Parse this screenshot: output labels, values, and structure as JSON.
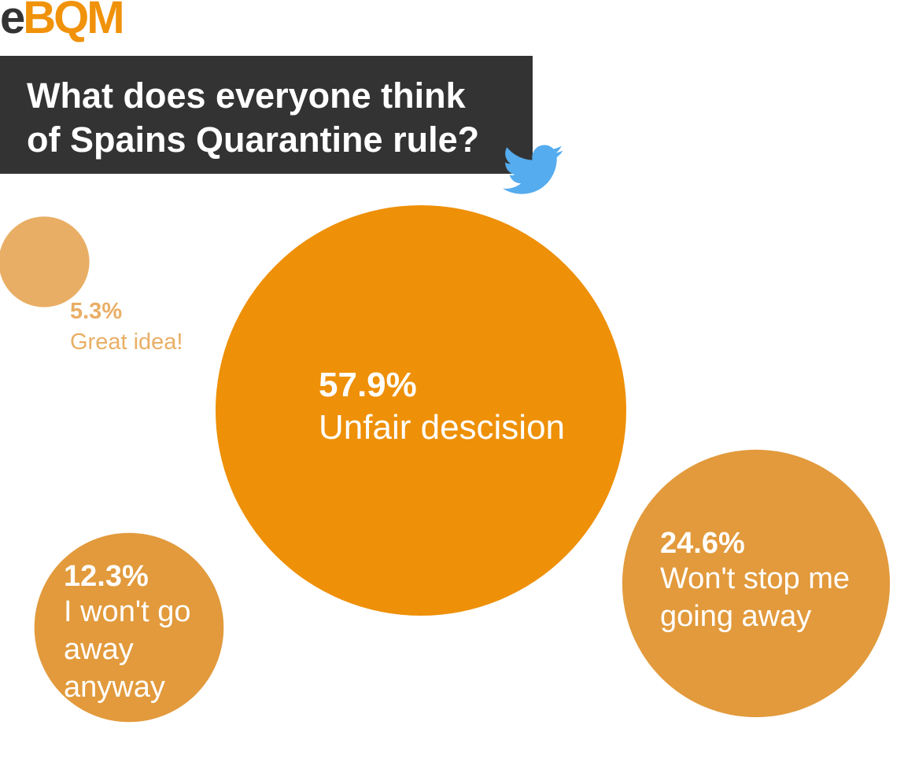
{
  "logo": {
    "part1": "e",
    "part2": "BQM"
  },
  "title": {
    "line1": "What does everyone think",
    "line2": "of Spains Quarantine rule?"
  },
  "icons": {
    "source": "twitter-bird-icon"
  },
  "colors": {
    "dark": "#333333",
    "primary": "#ee9008",
    "secondary": "#e29a3c",
    "small": "#e9ae65",
    "twitter": "#55acee"
  },
  "chart_data": {
    "type": "bubble",
    "title": "What does everyone think of Spains Quarantine rule?",
    "series": [
      {
        "label": "Unfair descision",
        "value": 57.9,
        "value_text": "57.9%"
      },
      {
        "label": "Won't stop me going away",
        "value": 24.6,
        "value_text": "24.6%"
      },
      {
        "label": "I won't go away anyway",
        "value": 12.3,
        "value_text": "12.3%"
      },
      {
        "label": "Great idea!",
        "value": 5.3,
        "value_text": "5.3%"
      }
    ]
  }
}
